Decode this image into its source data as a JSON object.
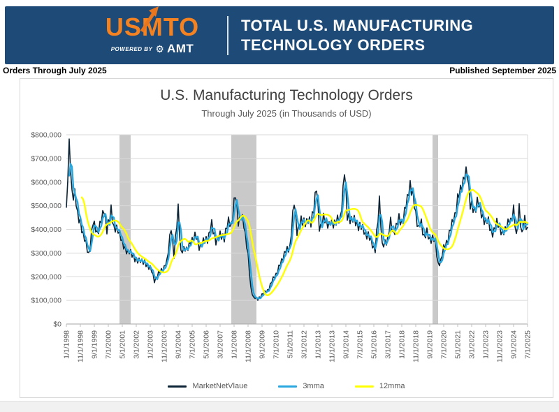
{
  "header": {
    "brand": "USMTO",
    "powered_by": "POWERED BY",
    "amt": "AMT",
    "title_line1": "TOTAL U.S. MANUFACTURING",
    "title_line2": "TECHNOLOGY ORDERS",
    "bg_color": "#1d4a77",
    "accent_orange": "#f58220"
  },
  "subheader": {
    "left": "Orders Through July 2025",
    "right": "Published September 2025"
  },
  "chart": {
    "title": "U.S. Manufacturing Technology Orders",
    "subtitle": "Through July 2025 (in Thousands of USD)"
  },
  "legend": {
    "items": [
      {
        "label": "MarketNetVlaue",
        "color": "#0d2436"
      },
      {
        "label": "3mma",
        "color": "#29a8df"
      },
      {
        "label": "12mma",
        "color": "#ffff00"
      }
    ]
  },
  "chart_data": {
    "type": "line",
    "title": "U.S. Manufacturing Technology Orders",
    "subtitle": "Through July 2025 (in Thousands of USD)",
    "unit": "USD thousands",
    "x_start": "1/1/1998",
    "x_end": "7/1/2025",
    "n_months": 331,
    "x_tick_interval_months": 10,
    "x_tick_labels": [
      "1/1/1998",
      "11/1/1998",
      "9/1/1999",
      "7/1/2000",
      "5/1/2001",
      "3/1/2002",
      "1/1/2003",
      "11/1/2003",
      "9/1/2004",
      "7/1/2005",
      "5/1/2006",
      "3/1/2007",
      "1/1/2008",
      "11/1/2008",
      "9/1/2009",
      "7/1/2010",
      "5/1/2011",
      "3/1/2012",
      "1/1/2013",
      "11/1/2013",
      "9/1/2014",
      "7/1/2015",
      "5/1/2016",
      "3/1/2017",
      "1/1/2018",
      "11/1/2018",
      "9/1/2019",
      "7/1/2020",
      "5/1/2021",
      "3/1/2022",
      "1/1/2023",
      "11/1/2023",
      "9/1/2024",
      "7/1/2025"
    ],
    "y_ticks": [
      "$0",
      "$100,000",
      "$200,000",
      "$300,000",
      "$400,000",
      "$500,000",
      "$600,000",
      "$700,000",
      "$800,000"
    ],
    "ylim": [
      0,
      800000
    ],
    "anchor_scale": 1000,
    "monthly_noise_frac": 0.07,
    "jitter": [
      0.25,
      -0.55,
      0.8,
      -0.35,
      0.6,
      -0.75,
      0.3,
      -0.2,
      0.9,
      -0.5,
      0.45,
      -0.85,
      0.2,
      -0.4,
      0.7,
      -0.6,
      0.35,
      -0.9,
      0.55,
      -0.25,
      0.75,
      -0.45,
      0.15,
      -0.65,
      0.85,
      -0.3,
      0.5,
      -0.7,
      0.4,
      -0.15,
      0.65,
      -0.8
    ],
    "recession_bands_months": [
      [
        38,
        46
      ],
      [
        118,
        136
      ],
      [
        262,
        266
      ]
    ],
    "series": [
      {
        "name": "MarketNetVlaue",
        "color": "#0d2436",
        "width": 1.6,
        "ma": 1,
        "anchors": [
          [
            0,
            485
          ],
          [
            2,
            775
          ],
          [
            4,
            545
          ],
          [
            6,
            560
          ],
          [
            8,
            450
          ],
          [
            10,
            435
          ],
          [
            13,
            360
          ],
          [
            16,
            295
          ],
          [
            19,
            425
          ],
          [
            22,
            390
          ],
          [
            24,
            410
          ],
          [
            27,
            490
          ],
          [
            29,
            385
          ],
          [
            32,
            495
          ],
          [
            34,
            395
          ],
          [
            37,
            405
          ],
          [
            40,
            335
          ],
          [
            43,
            315
          ],
          [
            46,
            300
          ],
          [
            48,
            290
          ],
          [
            51,
            262
          ],
          [
            54,
            272
          ],
          [
            57,
            248
          ],
          [
            60,
            240
          ],
          [
            63,
            185
          ],
          [
            66,
            212
          ],
          [
            69,
            232
          ],
          [
            72,
            260
          ],
          [
            75,
            420
          ],
          [
            77,
            285
          ],
          [
            80,
            495
          ],
          [
            82,
            300
          ],
          [
            85,
            318
          ],
          [
            88,
            330
          ],
          [
            92,
            378
          ],
          [
            95,
            330
          ],
          [
            98,
            345
          ],
          [
            101,
            360
          ],
          [
            104,
            415
          ],
          [
            107,
            355
          ],
          [
            110,
            375
          ],
          [
            113,
            370
          ],
          [
            116,
            430
          ],
          [
            118,
            420
          ],
          [
            121,
            545
          ],
          [
            123,
            435
          ],
          [
            125,
            455
          ],
          [
            127,
            430
          ],
          [
            130,
            285
          ],
          [
            132,
            150
          ],
          [
            134,
            112
          ],
          [
            137,
            104
          ],
          [
            140,
            126
          ],
          [
            144,
            142
          ],
          [
            148,
            190
          ],
          [
            152,
            235
          ],
          [
            156,
            298
          ],
          [
            160,
            330
          ],
          [
            163,
            515
          ],
          [
            165,
            395
          ],
          [
            168,
            430
          ],
          [
            172,
            440
          ],
          [
            175,
            428
          ],
          [
            179,
            572
          ],
          [
            181,
            405
          ],
          [
            184,
            442
          ],
          [
            188,
            420
          ],
          [
            192,
            432
          ],
          [
            196,
            440
          ],
          [
            199,
            640
          ],
          [
            201,
            455
          ],
          [
            204,
            448
          ],
          [
            208,
            428
          ],
          [
            212,
            400
          ],
          [
            216,
            368
          ],
          [
            218,
            355
          ],
          [
            221,
            305
          ],
          [
            224,
            532
          ],
          [
            226,
            325
          ],
          [
            228,
            342
          ],
          [
            230,
            362
          ],
          [
            232,
            425
          ],
          [
            234,
            385
          ],
          [
            236,
            420
          ],
          [
            238,
            445
          ],
          [
            240,
            430
          ],
          [
            242,
            475
          ],
          [
            244,
            520
          ],
          [
            246,
            600
          ],
          [
            248,
            540
          ],
          [
            250,
            462
          ],
          [
            252,
            405
          ],
          [
            254,
            425
          ],
          [
            256,
            372
          ],
          [
            258,
            385
          ],
          [
            260,
            352
          ],
          [
            262,
            368
          ],
          [
            264,
            340
          ],
          [
            266,
            252
          ],
          [
            268,
            272
          ],
          [
            270,
            320
          ],
          [
            272,
            345
          ],
          [
            274,
            382
          ],
          [
            276,
            420
          ],
          [
            278,
            465
          ],
          [
            280,
            520
          ],
          [
            283,
            590
          ],
          [
            285,
            618
          ],
          [
            287,
            652
          ],
          [
            289,
            505
          ],
          [
            292,
            472
          ],
          [
            294,
            525
          ],
          [
            296,
            478
          ],
          [
            298,
            452
          ],
          [
            300,
            442
          ],
          [
            302,
            432
          ],
          [
            304,
            392
          ],
          [
            306,
            392
          ],
          [
            308,
            425
          ],
          [
            310,
            418
          ],
          [
            312,
            372
          ],
          [
            314,
            398
          ],
          [
            316,
            432
          ],
          [
            318,
            428
          ],
          [
            320,
            495
          ],
          [
            322,
            362
          ],
          [
            324,
            488
          ],
          [
            326,
            382
          ],
          [
            328,
            432
          ],
          [
            330,
            396
          ]
        ]
      },
      {
        "name": "3mma",
        "color": "#29a8df",
        "width": 2.4,
        "ma": 3
      },
      {
        "name": "12mma",
        "color": "#ffff00",
        "width": 2.4,
        "ma": 12
      }
    ],
    "grid_color": "#d9d9d9",
    "band_color": "#c9c9c9",
    "axis_color": "#a6a6a6",
    "tick_color": "#bfbfbf",
    "label_color": "#595959",
    "legend_position": "bottom"
  }
}
